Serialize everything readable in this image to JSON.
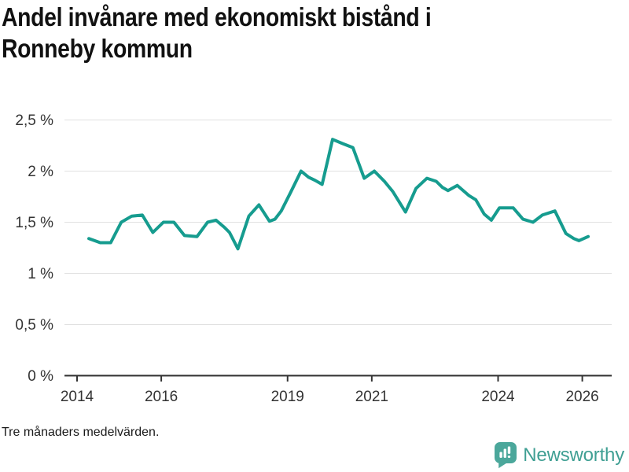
{
  "header": {
    "title_line1": "Andel invånare med ekonomiskt bistånd i",
    "title_line2": "Ronneby kommun"
  },
  "footer": {
    "note": "Tre månaders medelvärden.",
    "brand": "Newsworthy"
  },
  "colors": {
    "line": "#169c8f",
    "grid": "#e1e1e1",
    "axis": "#333333",
    "tick_label": "#333333",
    "logo_icon": "#4ba79b",
    "logo_text": "#3f9f93"
  },
  "chart_data": {
    "type": "line",
    "title": "Andel invånare med ekonomiskt bistånd i Ronneby kommun",
    "note": "Tre månaders medelvärden.",
    "unit": "%",
    "grid": "horizontal",
    "legend": "none",
    "ylim": [
      0,
      2.5
    ],
    "xlim": [
      2013.7,
      2026.7
    ],
    "y_ticks": [
      {
        "value": 0,
        "label": "0 %"
      },
      {
        "value": 0.5,
        "label": "0,5 %"
      },
      {
        "value": 1,
        "label": "1 %"
      },
      {
        "value": 1.5,
        "label": "1,5 %"
      },
      {
        "value": 2,
        "label": "2 %"
      },
      {
        "value": 2.5,
        "label": "2,5 %"
      }
    ],
    "x_ticks": [
      {
        "value": 2014,
        "label": "2014"
      },
      {
        "value": 2016,
        "label": "2016"
      },
      {
        "value": 2019,
        "label": "2019"
      },
      {
        "value": 2021,
        "label": "2021"
      },
      {
        "value": 2024,
        "label": "2024"
      },
      {
        "value": 2026,
        "label": "2026"
      }
    ],
    "series": [
      {
        "name": "Andel invånare med ekonomiskt bistånd, Ronneby kommun",
        "x": [
          2014.28,
          2014.55,
          2014.8,
          2015.05,
          2015.3,
          2015.55,
          2015.8,
          2016.05,
          2016.3,
          2016.55,
          2016.85,
          2017.1,
          2017.3,
          2017.5,
          2017.62,
          2017.82,
          2018.08,
          2018.32,
          2018.57,
          2018.7,
          2018.85,
          2019.07,
          2019.32,
          2019.5,
          2019.65,
          2019.82,
          2020.07,
          2020.3,
          2020.55,
          2020.82,
          2021.06,
          2021.3,
          2021.5,
          2021.8,
          2022.05,
          2022.31,
          2022.53,
          2022.68,
          2022.81,
          2023.03,
          2023.31,
          2023.47,
          2023.67,
          2023.84,
          2024.03,
          2024.36,
          2024.59,
          2024.83,
          2025.05,
          2025.35,
          2025.61,
          2025.8,
          2025.92,
          2026.14
        ],
        "y": [
          1.34,
          1.3,
          1.3,
          1.5,
          1.56,
          1.57,
          1.4,
          1.5,
          1.5,
          1.37,
          1.36,
          1.5,
          1.52,
          1.45,
          1.4,
          1.24,
          1.56,
          1.67,
          1.51,
          1.53,
          1.61,
          1.79,
          2.0,
          1.94,
          1.91,
          1.87,
          2.31,
          2.27,
          2.23,
          1.93,
          2.0,
          1.9,
          1.8,
          1.6,
          1.83,
          1.93,
          1.9,
          1.84,
          1.81,
          1.86,
          1.76,
          1.72,
          1.58,
          1.52,
          1.64,
          1.64,
          1.53,
          1.5,
          1.57,
          1.61,
          1.39,
          1.34,
          1.32,
          1.36
        ]
      }
    ]
  }
}
